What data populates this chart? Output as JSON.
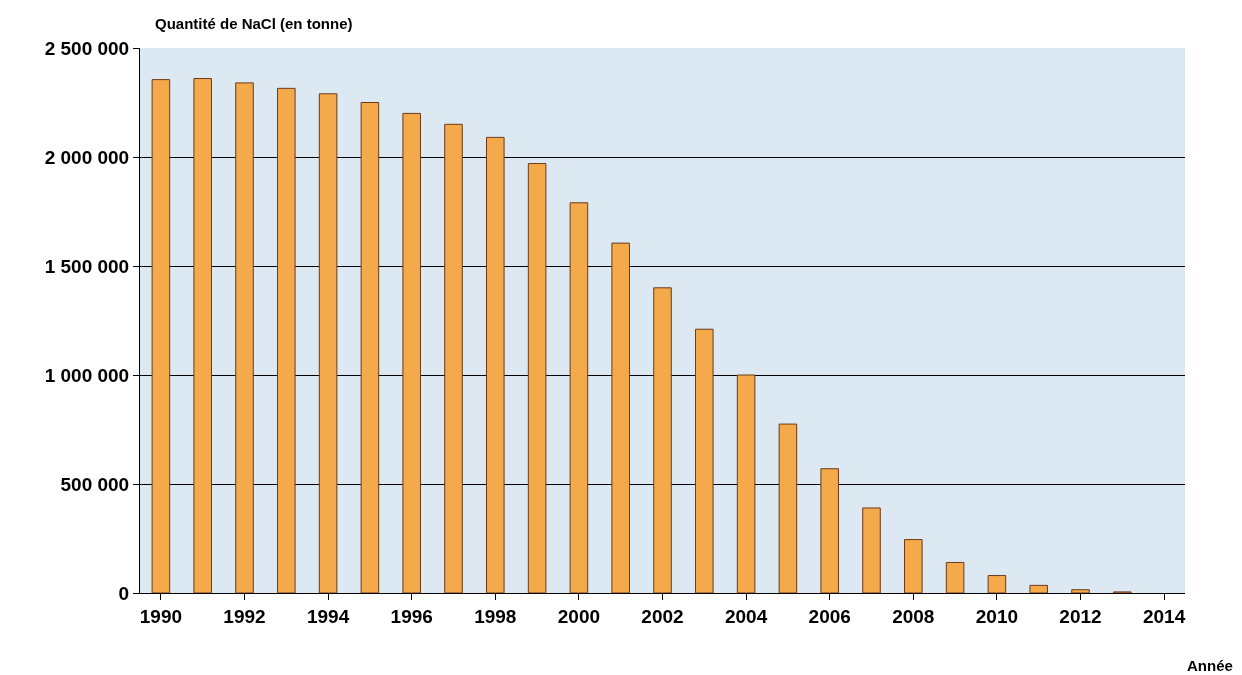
{
  "chart_data": {
    "type": "bar",
    "ylabel": "Quantité de NaCl (en tonne)",
    "xlabel": "Année",
    "x": [
      1990,
      1991,
      1992,
      1993,
      1994,
      1995,
      1996,
      1997,
      1998,
      1999,
      2000,
      2001,
      2002,
      2003,
      2004,
      2005,
      2006,
      2007,
      2008,
      2009,
      2010,
      2011,
      2012,
      2013
    ],
    "values": [
      2355000,
      2360000,
      2340000,
      2315000,
      2290000,
      2250000,
      2200000,
      2150000,
      2090000,
      1970000,
      1790000,
      1605000,
      1400000,
      1210000,
      1000000,
      775000,
      570000,
      390000,
      245000,
      140000,
      80000,
      35000,
      15000,
      5000
    ],
    "color": "#f4a94a",
    "xlim": [
      1989.5,
      2014.5
    ],
    "xticks": [
      1990,
      1992,
      1994,
      1996,
      1998,
      2000,
      2002,
      2004,
      2006,
      2008,
      2010,
      2012,
      2014
    ],
    "ylim": [
      0,
      2500000
    ],
    "yticks": [
      {
        "value": 0,
        "label": "0"
      },
      {
        "value": 500000,
        "label": "500 000"
      },
      {
        "value": 1000000,
        "label": "1 000 000"
      },
      {
        "value": 1500000,
        "label": "1 500 000"
      },
      {
        "value": 2000000,
        "label": "2 000 000"
      },
      {
        "value": 2500000,
        "label": "2 500 000"
      }
    ],
    "grid": "y"
  }
}
